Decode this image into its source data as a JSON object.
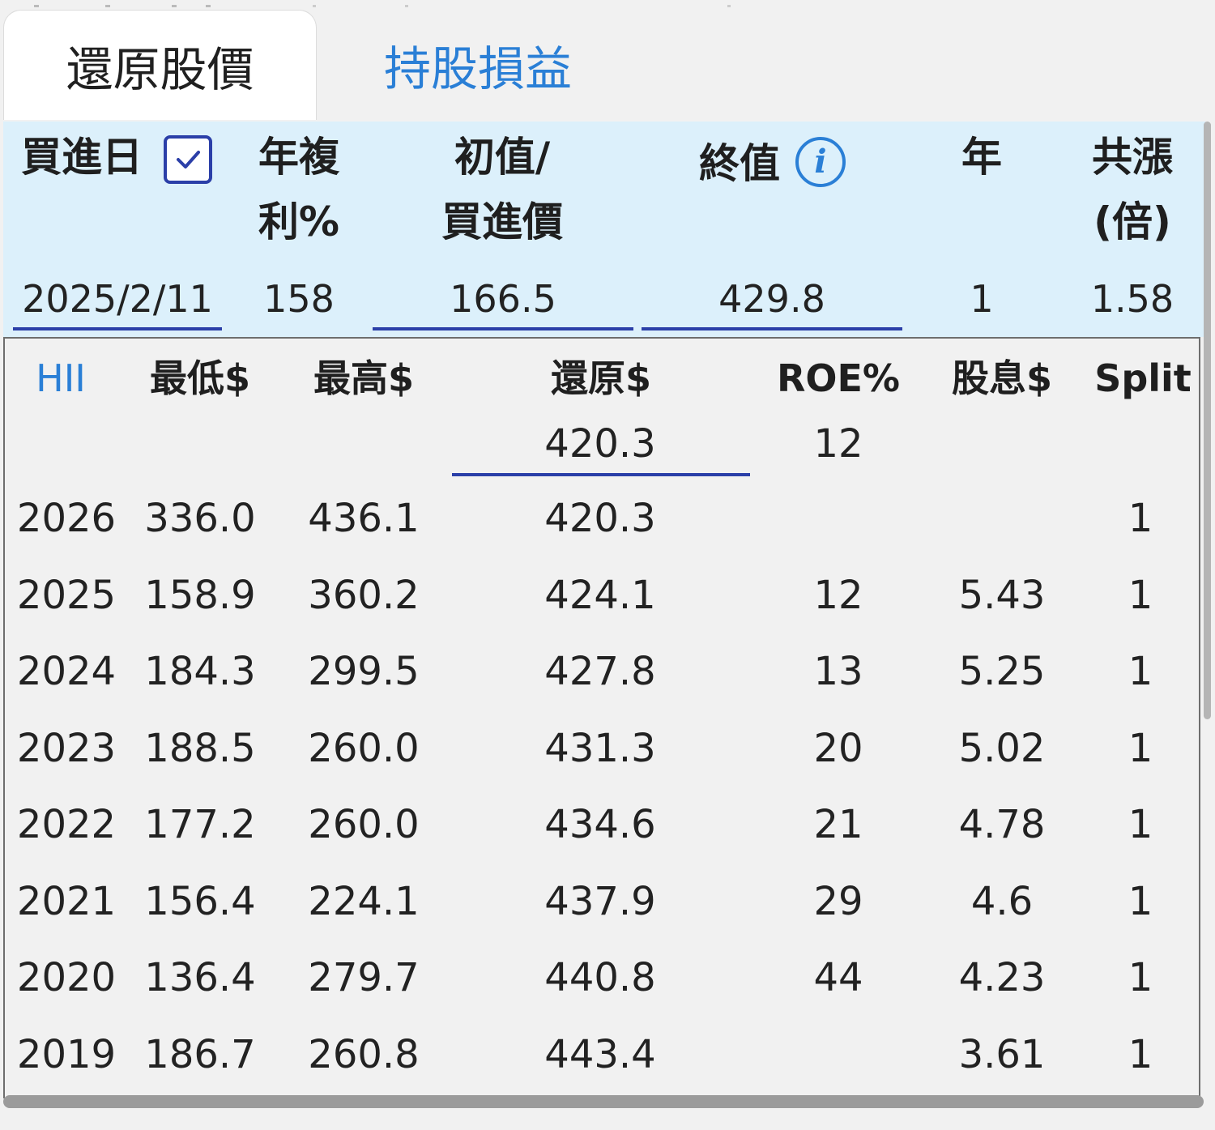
{
  "tabs": [
    {
      "label": "還原股價",
      "active": true
    },
    {
      "label": "持股損益",
      "active": false
    }
  ],
  "params": {
    "buy_date_label": "買進日",
    "buy_date_checked": true,
    "cagr_label_1": "年複",
    "cagr_label_2": "利%",
    "initial_label_1": "初值/",
    "initial_label_2": "買進價",
    "final_label": "終值",
    "years_label": "年",
    "multiple_label_1": "共漲",
    "multiple_label_2": "(倍)",
    "buy_date_value": "2025/2/11",
    "cagr_value": "158",
    "initial_value": "166.5",
    "final_value": "429.8",
    "years_value": "1",
    "multiple_value": "1.58"
  },
  "table": {
    "ticker": "HII",
    "columns": [
      "最低$",
      "最高$",
      "還原$",
      "ROE%",
      "股息$",
      "Split"
    ],
    "summary": {
      "adjusted": "420.3",
      "roe": "12"
    },
    "rows": [
      {
        "year": "2026",
        "low": "336.0",
        "high": "436.1",
        "adjusted": "420.3",
        "roe": "",
        "dividend": "",
        "split": "1"
      },
      {
        "year": "2025",
        "low": "158.9",
        "high": "360.2",
        "adjusted": "424.1",
        "roe": "12",
        "dividend": "5.43",
        "split": "1"
      },
      {
        "year": "2024",
        "low": "184.3",
        "high": "299.5",
        "adjusted": "427.8",
        "roe": "13",
        "dividend": "5.25",
        "split": "1"
      },
      {
        "year": "2023",
        "low": "188.5",
        "high": "260.0",
        "adjusted": "431.3",
        "roe": "20",
        "dividend": "5.02",
        "split": "1"
      },
      {
        "year": "2022",
        "low": "177.2",
        "high": "260.0",
        "adjusted": "434.6",
        "roe": "21",
        "dividend": "4.78",
        "split": "1"
      },
      {
        "year": "2021",
        "low": "156.4",
        "high": "224.1",
        "adjusted": "437.9",
        "roe": "29",
        "dividend": "4.6",
        "split": "1"
      },
      {
        "year": "2020",
        "low": "136.4",
        "high": "279.7",
        "adjusted": "440.8",
        "roe": "44",
        "dividend": "4.23",
        "split": "1"
      },
      {
        "year": "2019",
        "low": "186.7",
        "high": "260.8",
        "adjusted": "443.4",
        "roe": "",
        "dividend": "3.61",
        "split": "1"
      }
    ]
  },
  "colors": {
    "accent_blue": "#2a7fd6",
    "underline_blue": "#2b3fa8",
    "panel_bg": "#dcf0fb",
    "page_bg": "#f1f1f1"
  }
}
